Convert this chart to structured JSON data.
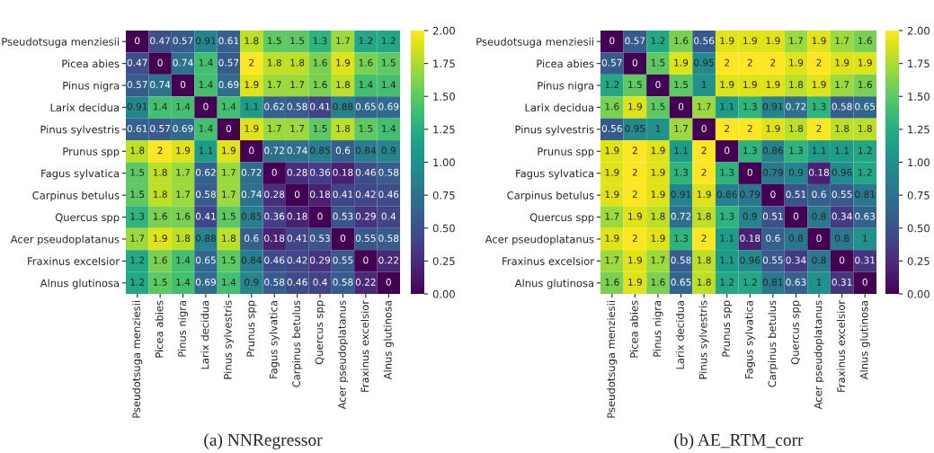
{
  "chart_data": [
    {
      "type": "heatmap",
      "title": "(a) NNRegressor",
      "categories": [
        "Pseudotsuga menziesii",
        "Picea abies",
        "Pinus nigra",
        "Larix decidua",
        "Pinus sylvestris",
        "Prunus spp",
        "Fagus sylvatica",
        "Carpinus betulus",
        "Quercus spp",
        "Acer pseudoplatanus",
        "Fraxinus excelsior",
        "Alnus glutinosa"
      ],
      "y_categories": [
        "Pseudotsuga menziesii",
        "Picea abies",
        "Pinus nigra",
        "Larix decidua",
        "Pinus sylvestris",
        "Prunus spp",
        "Fagus sylvatica",
        "Carpinus betulus",
        "Quercus spp",
        "Acer pseudoplatanus",
        "Fraxinus excelsior",
        "Alnus glutinosa"
      ],
      "cells": [
        [
          0,
          0.47,
          0.57,
          0.91,
          0.61,
          1.8,
          1.5,
          1.5,
          1.3,
          1.7,
          1.2,
          1.2
        ],
        [
          0.47,
          0,
          0.74,
          1.4,
          0.57,
          2,
          1.8,
          1.8,
          1.6,
          1.9,
          1.6,
          1.5
        ],
        [
          0.57,
          0.74,
          0,
          1.4,
          0.69,
          1.9,
          1.7,
          1.7,
          1.6,
          1.8,
          1.4,
          1.4
        ],
        [
          0.91,
          1.4,
          1.4,
          0,
          1.4,
          1.1,
          0.62,
          0.58,
          0.41,
          0.88,
          0.65,
          0.69
        ],
        [
          0.61,
          0.57,
          0.69,
          1.4,
          0,
          1.9,
          1.7,
          1.7,
          1.5,
          1.8,
          1.5,
          1.4
        ],
        [
          1.8,
          2,
          1.9,
          1.1,
          1.9,
          0,
          0.72,
          0.74,
          0.85,
          0.6,
          0.84,
          0.9
        ],
        [
          1.5,
          1.8,
          1.7,
          0.62,
          1.7,
          0.72,
          0,
          0.28,
          0.36,
          0.18,
          0.46,
          0.58
        ],
        [
          1.5,
          1.8,
          1.7,
          0.58,
          1.7,
          0.74,
          0.28,
          0,
          0.18,
          0.41,
          0.42,
          0.46
        ],
        [
          1.3,
          1.6,
          1.6,
          0.41,
          1.5,
          0.85,
          0.36,
          0.18,
          0,
          0.53,
          0.29,
          0.4
        ],
        [
          1.7,
          1.9,
          1.8,
          0.88,
          1.8,
          0.6,
          0.18,
          0.41,
          0.53,
          0,
          0.55,
          0.58
        ],
        [
          1.2,
          1.6,
          1.4,
          0.65,
          1.5,
          0.84,
          0.46,
          0.42,
          0.29,
          0.55,
          0,
          0.22
        ],
        [
          1.2,
          1.5,
          1.4,
          0.69,
          1.4,
          0.9,
          0.58,
          0.46,
          0.4,
          0.58,
          0.22,
          0
        ]
      ],
      "data_labels": true,
      "clim": [
        0,
        2
      ],
      "cticks": [
        {
          "value": 0,
          "label": "0.00"
        },
        {
          "value": 0.25,
          "label": "0.25"
        },
        {
          "value": 0.5,
          "label": "0.50"
        },
        {
          "value": 0.75,
          "label": "0.75"
        },
        {
          "value": 1,
          "label": "1.00"
        },
        {
          "value": 1.25,
          "label": "1.25"
        },
        {
          "value": 1.5,
          "label": "1.50"
        },
        {
          "value": 1.75,
          "label": "1.75"
        },
        {
          "value": 2,
          "label": "2.00"
        }
      ]
    },
    {
      "type": "heatmap",
      "title": "(b) AE_RTM_corr",
      "categories": [
        "Pseudotsuga menziesii",
        "Picea abies",
        "Pinus nigra",
        "Larix decidua",
        "Pinus sylvestris",
        "Prunus spp",
        "Fagus sylvatica",
        "Carpinus betulus",
        "Quercus spp",
        "Acer pseudoplatanus",
        "Fraxinus excelsior",
        "Alnus glutinosa"
      ],
      "y_categories": [
        "Pseudotsuga menziesii",
        "Picea abies",
        "Pinus nigra",
        "Larix decidua",
        "Pinus sylvestris",
        "Prunus spp",
        "Fagus sylvatica",
        "Carpinus betulus",
        "Quercus spp",
        "Acer pseudoplatanus",
        "Fraxinus excelsior",
        "Alnus glutinosa"
      ],
      "cells": [
        [
          0,
          0.57,
          1.2,
          1.6,
          0.56,
          1.9,
          1.9,
          1.9,
          1.7,
          1.9,
          1.7,
          1.6
        ],
        [
          0.57,
          0,
          1.5,
          1.9,
          0.95,
          2,
          2,
          2,
          1.9,
          2,
          1.9,
          1.9
        ],
        [
          1.2,
          1.5,
          0,
          1.5,
          1,
          1.9,
          1.9,
          1.9,
          1.8,
          1.9,
          1.7,
          1.6
        ],
        [
          1.6,
          1.9,
          1.5,
          0,
          1.7,
          1.1,
          1.3,
          0.91,
          0.72,
          1.3,
          0.58,
          0.65
        ],
        [
          0.56,
          0.95,
          1,
          1.7,
          0,
          2,
          2,
          1.9,
          1.8,
          2,
          1.8,
          1.8
        ],
        [
          1.9,
          2,
          1.9,
          1.1,
          2,
          0,
          1.3,
          0.86,
          1.3,
          1.1,
          1.1,
          1.2
        ],
        [
          1.9,
          2,
          1.9,
          1.3,
          2,
          1.3,
          0,
          0.79,
          0.9,
          0.18,
          0.96,
          1.2
        ],
        [
          1.9,
          2,
          1.9,
          0.91,
          1.9,
          0.86,
          0.79,
          0,
          0.51,
          0.6,
          0.55,
          0.81
        ],
        [
          1.7,
          1.9,
          1.8,
          0.72,
          1.8,
          1.3,
          0.9,
          0.51,
          0,
          0.8,
          0.34,
          0.63
        ],
        [
          1.9,
          2,
          1.9,
          1.3,
          2,
          1.1,
          0.18,
          0.6,
          0.8,
          0,
          0.8,
          1
        ],
        [
          1.7,
          1.9,
          1.7,
          0.58,
          1.8,
          1.1,
          0.96,
          0.55,
          0.34,
          0.8,
          0,
          0.31
        ],
        [
          1.6,
          1.9,
          1.6,
          0.65,
          1.8,
          1.2,
          1.2,
          0.81,
          0.63,
          1,
          0.31,
          0
        ]
      ],
      "data_labels": true,
      "clim": [
        0,
        2
      ],
      "cticks": [
        {
          "value": 0,
          "label": "0.00"
        },
        {
          "value": 0.25,
          "label": "0.25"
        },
        {
          "value": 0.5,
          "label": "0.50"
        },
        {
          "value": 0.75,
          "label": "0.75"
        },
        {
          "value": 1,
          "label": "1.00"
        },
        {
          "value": 1.25,
          "label": "1.25"
        },
        {
          "value": 1.5,
          "label": "1.50"
        },
        {
          "value": 1.75,
          "label": "1.75"
        },
        {
          "value": 2,
          "label": "2.00"
        }
      ]
    }
  ]
}
